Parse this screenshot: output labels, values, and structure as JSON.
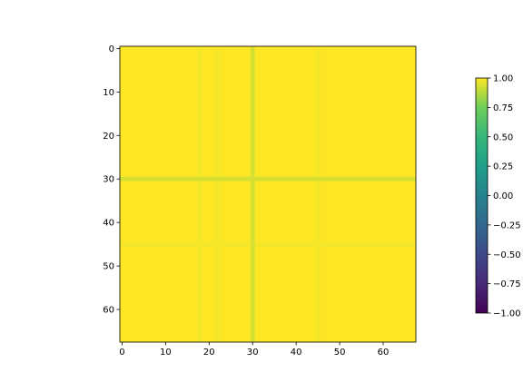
{
  "chart_data": {
    "type": "heatmap",
    "matrix_size": 68,
    "x_ticks": [
      "0",
      "10",
      "20",
      "30",
      "40",
      "50",
      "60"
    ],
    "y_ticks": [
      "0",
      "10",
      "20",
      "30",
      "40",
      "50",
      "60"
    ],
    "x_tick_values": [
      0,
      10,
      20,
      30,
      40,
      50,
      60
    ],
    "y_tick_values": [
      0,
      10,
      20,
      30,
      40,
      50,
      60
    ],
    "value_range": [
      -1.0,
      1.0
    ],
    "base_value": 1.0,
    "highlight_index": 30,
    "highlight_value": 0.93,
    "faint_columns": [
      18,
      22,
      45
    ],
    "faint_rows": [
      45
    ],
    "faint_value": 0.985,
    "colormap": "viridis",
    "colorbar": {
      "ticks": [
        "1.00",
        "0.75",
        "0.50",
        "0.25",
        "0.00",
        "−0.25",
        "−0.50",
        "−0.75",
        "−1.00"
      ],
      "tick_values": [
        1.0,
        0.75,
        0.5,
        0.25,
        0.0,
        -0.25,
        -0.5,
        -0.75,
        -1.0
      ]
    },
    "title": "",
    "xlabel": "",
    "ylabel": ""
  },
  "colors": {
    "viridis_low": "#440154",
    "viridis_mid": "#21918c",
    "viridis_high": "#fde725"
  }
}
